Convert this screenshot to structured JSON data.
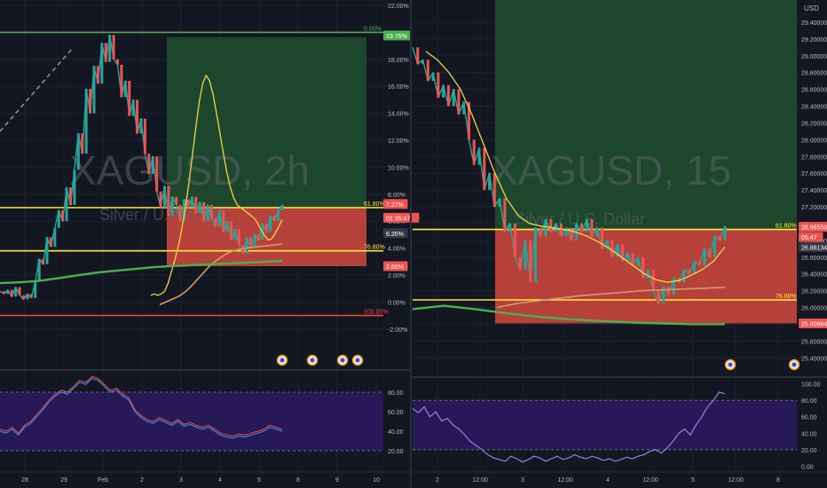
{
  "colors": {
    "background": "#131722",
    "grid": "#1e222d",
    "candle_up": "#26a69a",
    "candle_down": "#ef5350",
    "fib_green": "#4caf50",
    "fib_yellow": "#ffeb3b",
    "fib_red": "#f44336",
    "profit_zone": "#1f4d2e",
    "loss_zone": "#c9463d",
    "ema_yellow": "#f0d54a",
    "ma_orange": "#d49a6a",
    "ma_green": "#4caf50",
    "rsi_band": "#2a1a5e",
    "rsi_line": "#9c7fe0",
    "rsi_line_b": "#3f7fd6",
    "rsi_line_c": "#ef5350"
  },
  "chart_data": [
    {
      "type": "line",
      "symbol_watermark": "XAGUSD, 2h",
      "description_watermark": "Silver / U.S. Dollar",
      "y_axis_unit": "%",
      "ylim": [
        -3,
        22
      ],
      "y_ticks": [
        "22.00%",
        "20.00%",
        "18.00%",
        "16.00%",
        "14.00%",
        "12.00%",
        "10.00%",
        "8.00%",
        "6.00%",
        "4.00%",
        "2.00%",
        "0.00%",
        "-2.00%"
      ],
      "x_ticks": [
        "28",
        "29",
        "Feb",
        "2",
        "3",
        "4",
        "5",
        "8",
        "9",
        "10"
      ],
      "price_tags": [
        {
          "label": "19.76%",
          "value": 19.76,
          "color": "#4caf50"
        },
        {
          "label": "7.27%",
          "value": 7.27,
          "color": "#ef5350"
        },
        {
          "label": "01:35:47",
          "value": 6.25,
          "color": "#ef5350"
        },
        {
          "label": "6.35%",
          "value": 5.1,
          "color": "#b2b5be"
        },
        {
          "label": "2.66%",
          "value": 2.66,
          "color": "#ef5350"
        }
      ],
      "fib_levels": [
        {
          "label": "0.00%",
          "value": 20.0,
          "color": "#4caf50"
        },
        {
          "label": "61.80%",
          "value": 7.0,
          "color": "#ffeb3b"
        },
        {
          "label": "76.80%",
          "value": 3.8,
          "color": "#ffeb3b"
        },
        {
          "label": "100.00%",
          "value": -1.0,
          "color": "#f44336"
        }
      ],
      "series": [
        {
          "values": [
            0.8,
            0.6,
            0.9,
            0.4,
            1.1,
            0.5,
            0.2,
            0.6,
            0.3,
            1.5,
            3.2,
            2.8,
            4.8,
            4.1,
            5.5,
            6.8,
            6.0,
            8.5,
            7.2,
            9.8,
            12.5,
            11.0,
            15.8,
            14.0,
            17.5,
            16.2,
            19.2,
            17.8,
            19.8,
            18.0,
            17.6,
            15.2,
            16.4,
            13.8,
            15.0,
            12.5,
            13.6,
            11.0,
            9.5,
            10.8,
            8.2,
            7.0,
            8.6,
            6.4,
            7.8,
            7.2,
            6.0,
            7.6,
            7.0,
            7.8,
            6.6,
            7.4,
            6.0,
            7.2,
            6.2,
            5.6,
            6.8,
            5.2,
            6.0,
            4.6,
            5.4,
            4.2,
            3.6,
            4.8,
            4.0,
            5.0,
            4.6,
            5.8,
            5.2,
            6.4,
            6.0,
            6.8,
            7.2
          ]
        },
        {
          "values": [
            0.5,
            0.6,
            0.5,
            0.6,
            0.8,
            1.4,
            2.3,
            3.2,
            4.2,
            5.5,
            7.0,
            8.8,
            10.8,
            12.9,
            14.8,
            16.2,
            16.8,
            16.4,
            15.4,
            14.0,
            12.5,
            11.0,
            9.6,
            8.5,
            7.7,
            7.2,
            7.0,
            6.8,
            6.6,
            6.4,
            6.2,
            5.8,
            5.3,
            4.9,
            4.6,
            4.7,
            5.1,
            5.6,
            6.1
          ]
        },
        {
          "values": [
            -0.2,
            0.0,
            0.2,
            0.4,
            0.7,
            1.1,
            1.6,
            2.1,
            2.6,
            3.0,
            3.3,
            3.6,
            3.8,
            3.9,
            4.0,
            4.05,
            4.1,
            4.15,
            4.2,
            4.25,
            4.3
          ]
        },
        {
          "values": [
            1.4,
            1.45,
            1.5,
            1.6,
            1.75,
            1.9,
            2.05,
            2.2,
            2.3,
            2.4,
            2.5,
            2.6,
            2.65,
            2.7,
            2.75,
            2.8,
            2.85,
            2.9,
            2.95,
            3.0,
            3.05
          ]
        }
      ],
      "rsi": {
        "ylim": [
          0,
          100
        ],
        "y_ticks": [
          "80.00",
          "60.00",
          "40.00",
          "20.00"
        ],
        "values": [
          40,
          38,
          42,
          36,
          44,
          48,
          55,
          62,
          70,
          76,
          80,
          78,
          84,
          90,
          88,
          94,
          92,
          86,
          80,
          82,
          76,
          72,
          60,
          54,
          50,
          48,
          52,
          49,
          46,
          50,
          45,
          47,
          44,
          42,
          44,
          40,
          36,
          34,
          33,
          35,
          34,
          36,
          38,
          40,
          44,
          42,
          40
        ]
      }
    },
    {
      "type": "line",
      "symbol_watermark": "XAGUSD, 15",
      "description_watermark": "Silver / U.S. Dollar",
      "y_axis_unit": "USD",
      "ylim": [
        25.35,
        29.6
      ],
      "y_ticks": [
        "29.40000",
        "29.20000",
        "29.00000",
        "28.80000",
        "28.60000",
        "28.40000",
        "28.20000",
        "28.00000",
        "27.80000",
        "27.60000",
        "27.40000",
        "27.20000",
        "27.00000",
        "26.80000",
        "26.60000",
        "26.40000",
        "26.20000",
        "26.00000",
        "25.80000",
        "25.60000",
        "25.40000"
      ],
      "x_ticks": [
        "2",
        "12:00",
        "3",
        "12:00",
        "4",
        "12:00",
        "5",
        "12:00",
        "8"
      ],
      "price_tags": [
        {
          "label": "26.96550",
          "value": 26.96,
          "color": "#ef5350"
        },
        {
          "label": "05:47",
          "value": 26.84,
          "color": "#ef5350"
        },
        {
          "label": "26.86134",
          "value": 26.72,
          "color": "#b2b5be"
        },
        {
          "label": "25.80684",
          "value": 25.81,
          "color": "#ef5350"
        }
      ],
      "fib_levels": [
        {
          "label": "61.80%",
          "value": 26.93,
          "color": "#ffeb3b"
        },
        {
          "label": "76.80%",
          "value": 26.09,
          "color": "#ffeb3b"
        }
      ],
      "series": [
        {
          "values": [
            29.1,
            28.9,
            28.95,
            28.7,
            28.8,
            28.5,
            28.65,
            28.4,
            28.6,
            28.3,
            28.45,
            28.0,
            27.7,
            27.9,
            27.4,
            27.6,
            27.2,
            27.3,
            26.9,
            27.0,
            26.6,
            26.45,
            26.8,
            26.3,
            26.95,
            26.85,
            27.05,
            26.9,
            27.0,
            26.85,
            26.95,
            26.8,
            27.0,
            26.9,
            27.05,
            26.85,
            26.95,
            26.7,
            26.8,
            26.6,
            26.75,
            26.55,
            26.65,
            26.5,
            26.6,
            26.35,
            26.45,
            26.2,
            26.05,
            26.25,
            26.15,
            26.35,
            26.3,
            26.45,
            26.4,
            26.55,
            26.5,
            26.7,
            26.6,
            26.85,
            26.8,
            26.97
          ]
        },
        {
          "values": [
            29.05,
            28.95,
            28.8,
            28.6,
            28.3,
            27.95,
            27.6,
            27.3,
            27.1,
            27.0,
            26.97,
            26.95,
            26.93,
            26.9,
            26.85,
            26.78,
            26.7,
            26.6,
            26.5,
            26.4,
            26.33,
            26.3,
            26.32,
            26.38,
            26.45,
            26.55,
            26.72
          ]
        },
        {
          "values": [
            26.0,
            26.05,
            26.08,
            26.11,
            26.14,
            26.16,
            26.18,
            26.2,
            26.21,
            26.22,
            26.23,
            26.24
          ]
        },
        {
          "values": [
            25.98,
            26.02,
            25.98,
            25.93,
            25.89,
            25.86,
            25.84,
            25.82,
            25.81,
            25.8,
            25.8
          ]
        }
      ],
      "rsi": {
        "ylim": [
          -5,
          105
        ],
        "y_ticks": [
          "100.00",
          "80.00",
          "60.00",
          "40.00",
          "20.00",
          "0.00"
        ],
        "values": [
          70,
          65,
          72,
          60,
          66,
          55,
          58,
          50,
          45,
          38,
          30,
          25,
          20,
          14,
          10,
          8,
          6,
          12,
          9,
          5,
          8,
          12,
          10,
          6,
          9,
          12,
          8,
          10,
          14,
          11,
          9,
          12,
          10,
          7,
          9,
          6,
          8,
          11,
          9,
          12,
          14,
          18,
          20,
          16,
          22,
          30,
          40,
          45,
          38,
          50,
          60,
          72,
          80,
          90,
          88
        ]
      }
    }
  ]
}
